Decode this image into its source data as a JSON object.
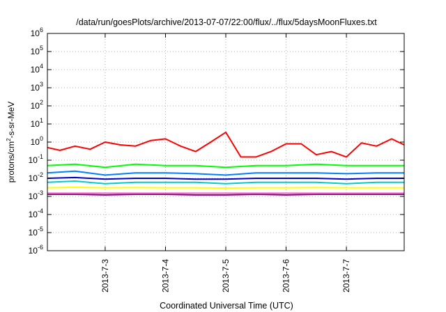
{
  "chart_data": {
    "type": "line",
    "title": "/data/run/goesPlots/archive/2013-07-07/22:00/flux/../flux/5daysMoonFluxes.txt",
    "xlabel": "Coordinated Universal Time (UTC)",
    "ylabel": {
      "pre": "protons/cm",
      "sup": "2",
      "post": "-s-sr-MeV"
    },
    "yscale": "log",
    "ylim_exp": [
      -6,
      6
    ],
    "y_ticks": [
      {
        "base": "10",
        "exp": "-6"
      },
      {
        "base": "10",
        "exp": "-5"
      },
      {
        "base": "10",
        "exp": "-4"
      },
      {
        "base": "10",
        "exp": "-3"
      },
      {
        "base": "10",
        "exp": "-2"
      },
      {
        "base": "10",
        "exp": "-1"
      },
      {
        "base": "10",
        "exp": "0"
      },
      {
        "base": "10",
        "exp": "1"
      },
      {
        "base": "10",
        "exp": "2"
      },
      {
        "base": "10",
        "exp": "3"
      },
      {
        "base": "10",
        "exp": "4"
      },
      {
        "base": "10",
        "exp": "5"
      },
      {
        "base": "10",
        "exp": "6"
      }
    ],
    "x_range_days": [
      "2013-07-02 01:00",
      "2013-07-07 23:00"
    ],
    "x_ticks": [
      "2013-7-3",
      "2013-7-4",
      "2013-7-5",
      "2013-7-6",
      "2013-7-7"
    ],
    "grid": true,
    "series": [
      {
        "color": "#ff0000",
        "x": [
          "2013-07-02 01:00",
          "2013-07-02 06:00",
          "2013-07-02 12:00",
          "2013-07-02 18:00",
          "2013-07-03 00:00",
          "2013-07-03 06:00",
          "2013-07-03 12:00",
          "2013-07-03 18:00",
          "2013-07-04 00:00",
          "2013-07-04 06:00",
          "2013-07-04 12:00",
          "2013-07-04 18:00",
          "2013-07-05 00:00",
          "2013-07-05 06:00",
          "2013-07-05 12:00",
          "2013-07-05 18:00",
          "2013-07-06 00:00",
          "2013-07-06 06:00",
          "2013-07-06 12:00",
          "2013-07-06 18:00",
          "2013-07-07 00:00",
          "2013-07-07 06:00",
          "2013-07-07 12:00",
          "2013-07-07 18:00",
          "2013-07-07 23:00"
        ],
        "y": [
          0.5,
          0.35,
          0.6,
          0.4,
          1.0,
          0.7,
          0.6,
          1.2,
          1.5,
          0.6,
          0.3,
          1.0,
          3.5,
          0.15,
          0.15,
          0.3,
          0.8,
          0.8,
          0.2,
          0.3,
          0.15,
          0.9,
          0.6,
          1.5,
          0.7
        ]
      },
      {
        "color": "#00ff00",
        "x": [
          "2013-07-02 01:00",
          "2013-07-02 12:00",
          "2013-07-03 00:00",
          "2013-07-03 12:00",
          "2013-07-04 00:00",
          "2013-07-04 12:00",
          "2013-07-05 00:00",
          "2013-07-05 12:00",
          "2013-07-06 00:00",
          "2013-07-06 12:00",
          "2013-07-07 00:00",
          "2013-07-07 12:00",
          "2013-07-07 23:00"
        ],
        "y": [
          0.05,
          0.06,
          0.04,
          0.06,
          0.05,
          0.05,
          0.04,
          0.05,
          0.05,
          0.06,
          0.05,
          0.05,
          0.05
        ]
      },
      {
        "color": "#0080ff",
        "x": [
          "2013-07-02 01:00",
          "2013-07-02 12:00",
          "2013-07-03 00:00",
          "2013-07-03 12:00",
          "2013-07-04 00:00",
          "2013-07-04 12:00",
          "2013-07-05 00:00",
          "2013-07-05 12:00",
          "2013-07-06 00:00",
          "2013-07-06 12:00",
          "2013-07-07 00:00",
          "2013-07-07 12:00",
          "2013-07-07 23:00"
        ],
        "y": [
          0.02,
          0.025,
          0.015,
          0.02,
          0.02,
          0.018,
          0.015,
          0.02,
          0.02,
          0.02,
          0.018,
          0.02,
          0.02
        ]
      },
      {
        "color": "#0000cc",
        "x": [
          "2013-07-02 01:00",
          "2013-07-02 12:00",
          "2013-07-03 00:00",
          "2013-07-03 12:00",
          "2013-07-04 00:00",
          "2013-07-04 12:00",
          "2013-07-05 00:00",
          "2013-07-05 12:00",
          "2013-07-06 00:00",
          "2013-07-06 12:00",
          "2013-07-07 00:00",
          "2013-07-07 12:00",
          "2013-07-07 23:00"
        ],
        "y": [
          0.01,
          0.011,
          0.009,
          0.01,
          0.01,
          0.009,
          0.009,
          0.01,
          0.01,
          0.01,
          0.009,
          0.01,
          0.01
        ]
      },
      {
        "color": "#00cccc",
        "x": [
          "2013-07-02 01:00",
          "2013-07-02 12:00",
          "2013-07-03 00:00",
          "2013-07-03 12:00",
          "2013-07-04 00:00",
          "2013-07-04 12:00",
          "2013-07-05 00:00",
          "2013-07-05 12:00",
          "2013-07-06 00:00",
          "2013-07-06 12:00",
          "2013-07-07 00:00",
          "2013-07-07 12:00",
          "2013-07-07 23:00"
        ],
        "y": [
          0.006,
          0.007,
          0.005,
          0.006,
          0.006,
          0.006,
          0.005,
          0.006,
          0.006,
          0.006,
          0.005,
          0.006,
          0.006
        ]
      },
      {
        "color": "#ffff00",
        "x": [
          "2013-07-02 01:00",
          "2013-07-02 12:00",
          "2013-07-03 00:00",
          "2013-07-03 12:00",
          "2013-07-04 00:00",
          "2013-07-04 12:00",
          "2013-07-05 00:00",
          "2013-07-05 12:00",
          "2013-07-06 00:00",
          "2013-07-06 12:00",
          "2013-07-07 00:00",
          "2013-07-07 12:00",
          "2013-07-07 23:00"
        ],
        "y": [
          0.003,
          0.0032,
          0.003,
          0.0031,
          0.003,
          0.003,
          0.0029,
          0.003,
          0.003,
          0.0031,
          0.003,
          0.003,
          0.003
        ]
      },
      {
        "color": "#ff66cc",
        "x": [
          "2013-07-02 01:00",
          "2013-07-03 00:00",
          "2013-07-04 00:00",
          "2013-07-05 00:00",
          "2013-07-06 00:00",
          "2013-07-07 00:00",
          "2013-07-07 23:00"
        ],
        "y": [
          0.0015,
          0.0015,
          0.0015,
          0.0015,
          0.0015,
          0.0015,
          0.0015
        ]
      },
      {
        "color": "#800080",
        "x": [
          "2013-07-02 01:00",
          "2013-07-02 12:00",
          "2013-07-03 00:00",
          "2013-07-03 12:00",
          "2013-07-04 00:00",
          "2013-07-04 12:00",
          "2013-07-05 00:00",
          "2013-07-05 12:00",
          "2013-07-06 00:00",
          "2013-07-06 12:00",
          "2013-07-07 00:00",
          "2013-07-07 12:00",
          "2013-07-07 23:00"
        ],
        "y": [
          0.0013,
          0.0013,
          0.0012,
          0.0013,
          0.0013,
          0.0012,
          0.0012,
          0.0013,
          0.0012,
          0.0013,
          0.0013,
          0.0013,
          0.0013
        ]
      }
    ]
  }
}
